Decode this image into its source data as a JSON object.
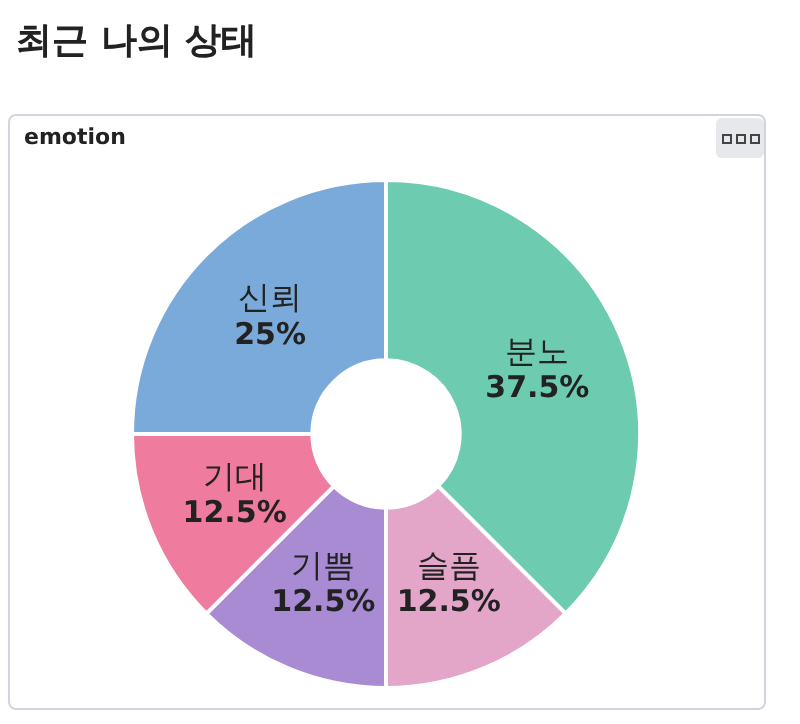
{
  "chart_data": {
    "type": "donut",
    "title": "최근 나의 상태",
    "subtitle": "emotion",
    "categories": [
      "분노",
      "슬픔",
      "기쁨",
      "기대",
      "신뢰"
    ],
    "values": [
      37.5,
      12.5,
      12.5,
      12.5,
      25
    ],
    "colors": [
      "#6dcbb0",
      "#e3a6c9",
      "#a98bd4",
      "#ef7b9f",
      "#7aaad9"
    ],
    "value_labels": [
      "37.5%",
      "12.5%",
      "12.5%",
      "12.5%",
      "25%"
    ]
  }
}
